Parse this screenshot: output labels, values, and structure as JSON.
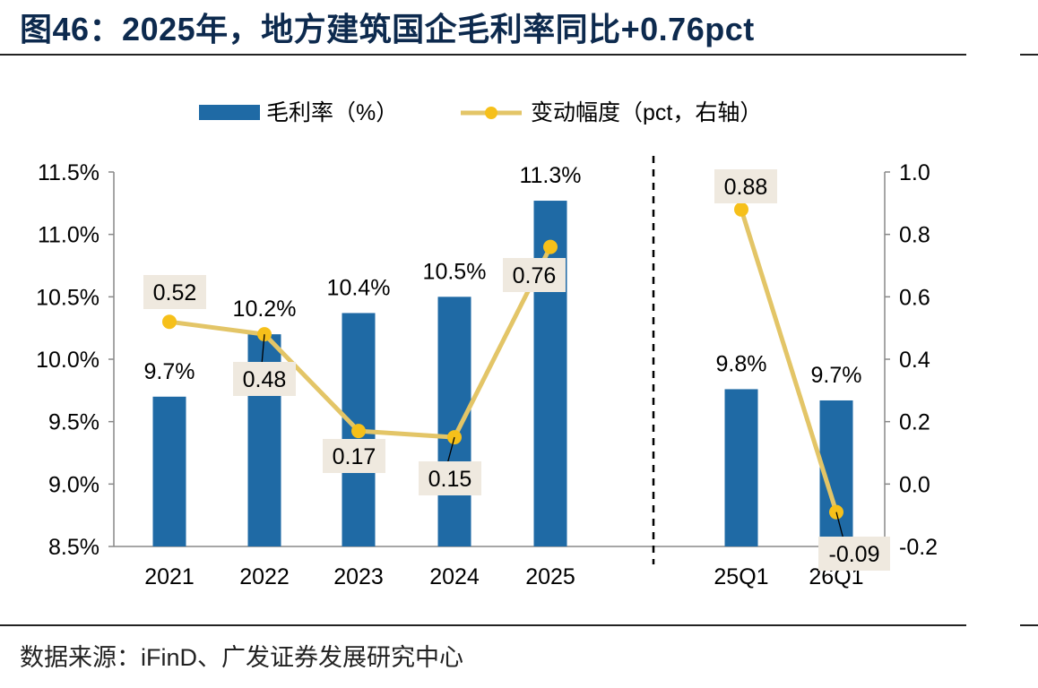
{
  "title": "图46：2025年，地方建筑国企毛利率同比+0.76pct",
  "source": "数据来源：iFinD、广发证券发展研究中心",
  "colors": {
    "bar": "#1f6aa5",
    "line": "#e3c567",
    "point": "#f6c01a",
    "label_box": "#efe9df",
    "title": "#0d2a4e"
  },
  "chart_data": {
    "type": "bar+line",
    "categories": [
      "2021",
      "2022",
      "2023",
      "2024",
      "2025",
      "25Q1",
      "26Q1"
    ],
    "series": [
      {
        "name": "毛利率（%）",
        "type": "bar",
        "axis": "left",
        "values": [
          9.7,
          10.2,
          10.37,
          10.5,
          11.27,
          9.76,
          9.67
        ],
        "labels": [
          "9.7%",
          "10.2%",
          "10.4%",
          "10.5%",
          "11.3%",
          "9.8%",
          "9.7%"
        ]
      },
      {
        "name": "变动幅度（pct，右轴）",
        "type": "line",
        "axis": "right",
        "values": [
          0.52,
          0.48,
          0.17,
          0.15,
          0.76,
          0.88,
          -0.09
        ],
        "labels": [
          "0.52",
          "0.48",
          "0.17",
          "0.15",
          "0.76",
          "0.88",
          "-0.09"
        ],
        "segments": [
          [
            0,
            4
          ],
          [
            5,
            6
          ]
        ]
      }
    ],
    "left_axis": {
      "min": 8.5,
      "max": 11.5,
      "ticks": [
        "8.5%",
        "9.0%",
        "9.5%",
        "10.0%",
        "10.5%",
        "11.0%",
        "11.5%"
      ]
    },
    "right_axis": {
      "min": -0.2,
      "max": 1.0,
      "ticks": [
        "-0.2",
        "0.0",
        "0.2",
        "0.4",
        "0.6",
        "0.8",
        "1.0"
      ]
    },
    "separator": "dashed line between 2025 and 25Q1",
    "legend": "top-center",
    "grid": false
  }
}
